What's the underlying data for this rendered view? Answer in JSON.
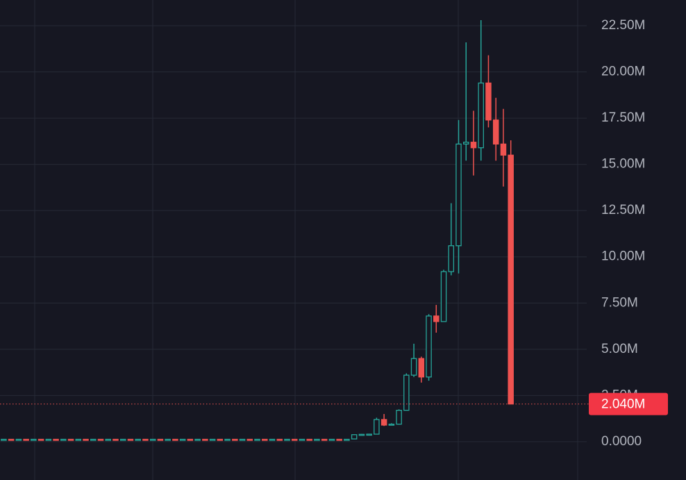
{
  "chart_data": {
    "type": "candlestick",
    "open": [
      0.1,
      0.13,
      0.1,
      0.13,
      0.1,
      0.13,
      0.1,
      0.13,
      0.1,
      0.13,
      0.1,
      0.13,
      0.1,
      0.13,
      0.1,
      0.13,
      0.1,
      0.13,
      0.1,
      0.13,
      0.1,
      0.13,
      0.1,
      0.13,
      0.1,
      0.13,
      0.1,
      0.13,
      0.1,
      0.13,
      0.1,
      0.13,
      0.1,
      0.13,
      0.1,
      0.13,
      0.1,
      0.13,
      0.1,
      0.13,
      0.1,
      0.13,
      0.1,
      0.13,
      0.1,
      0.13,
      0.1,
      0.15,
      0.38,
      0.4,
      0.41,
      1.2,
      0.9,
      0.95,
      1.7,
      3.6,
      4.5,
      3.5,
      6.8,
      6.5,
      9.2,
      10.6,
      16.1,
      16.2,
      15.9,
      19.4,
      17.4,
      16.1,
      15.5
    ],
    "high": [
      0.13,
      0.13,
      0.13,
      0.13,
      0.13,
      0.13,
      0.13,
      0.13,
      0.13,
      0.13,
      0.13,
      0.13,
      0.13,
      0.13,
      0.13,
      0.13,
      0.13,
      0.13,
      0.13,
      0.13,
      0.13,
      0.13,
      0.13,
      0.13,
      0.13,
      0.13,
      0.13,
      0.13,
      0.13,
      0.13,
      0.13,
      0.13,
      0.13,
      0.13,
      0.13,
      0.13,
      0.13,
      0.13,
      0.13,
      0.13,
      0.13,
      0.13,
      0.13,
      0.13,
      0.13,
      0.13,
      0.13,
      0.4,
      0.42,
      0.42,
      1.3,
      1.5,
      1.0,
      1.75,
      3.7,
      5.3,
      4.6,
      6.9,
      7.4,
      9.3,
      12.9,
      17.4,
      21.6,
      17.9,
      22.8,
      20.9,
      18.6,
      18.0,
      16.3
    ],
    "low": [
      0.1,
      0.1,
      0.1,
      0.1,
      0.1,
      0.1,
      0.1,
      0.1,
      0.1,
      0.1,
      0.1,
      0.1,
      0.1,
      0.1,
      0.1,
      0.1,
      0.1,
      0.1,
      0.1,
      0.1,
      0.1,
      0.1,
      0.1,
      0.1,
      0.1,
      0.1,
      0.1,
      0.1,
      0.1,
      0.1,
      0.1,
      0.1,
      0.1,
      0.1,
      0.1,
      0.1,
      0.1,
      0.1,
      0.1,
      0.1,
      0.1,
      0.1,
      0.1,
      0.1,
      0.1,
      0.1,
      0.1,
      0.15,
      0.36,
      0.38,
      0.4,
      0.85,
      0.88,
      0.93,
      1.7,
      3.5,
      3.2,
      3.3,
      5.9,
      6.5,
      9.0,
      9.1,
      15.2,
      14.4,
      15.2,
      17.0,
      15.2,
      13.8,
      2.04
    ],
    "close": [
      0.13,
      0.1,
      0.13,
      0.1,
      0.13,
      0.1,
      0.13,
      0.1,
      0.13,
      0.1,
      0.13,
      0.1,
      0.13,
      0.1,
      0.13,
      0.1,
      0.13,
      0.1,
      0.13,
      0.1,
      0.13,
      0.1,
      0.13,
      0.1,
      0.13,
      0.1,
      0.13,
      0.1,
      0.13,
      0.1,
      0.13,
      0.1,
      0.13,
      0.1,
      0.13,
      0.1,
      0.13,
      0.1,
      0.13,
      0.1,
      0.13,
      0.1,
      0.13,
      0.1,
      0.13,
      0.1,
      0.13,
      0.38,
      0.4,
      0.41,
      1.2,
      0.9,
      0.95,
      1.7,
      3.6,
      4.5,
      3.5,
      6.8,
      6.5,
      9.2,
      10.6,
      16.1,
      16.2,
      15.9,
      19.4,
      17.4,
      16.1,
      15.5,
      2.04
    ],
    "up_color": "#26a69a",
    "down_color": "#ef5350",
    "ylim": [
      -2.07,
      23.89
    ],
    "yticks": [
      {
        "value": 0,
        "label": "0.0000"
      },
      {
        "value": 2.5,
        "label": "2.50M"
      },
      {
        "value": 5,
        "label": "5.00M"
      },
      {
        "value": 7.5,
        "label": "7.50M"
      },
      {
        "value": 10,
        "label": "10.00M"
      },
      {
        "value": 12.5,
        "label": "12.50M"
      },
      {
        "value": 15,
        "label": "15.00M"
      },
      {
        "value": 17.5,
        "label": "17.50M"
      },
      {
        "value": 20,
        "label": "20.00M"
      },
      {
        "value": 22.5,
        "label": "22.50M"
      }
    ],
    "last_price": {
      "value": 2.04,
      "label": "2.040M"
    },
    "grid": true
  }
}
